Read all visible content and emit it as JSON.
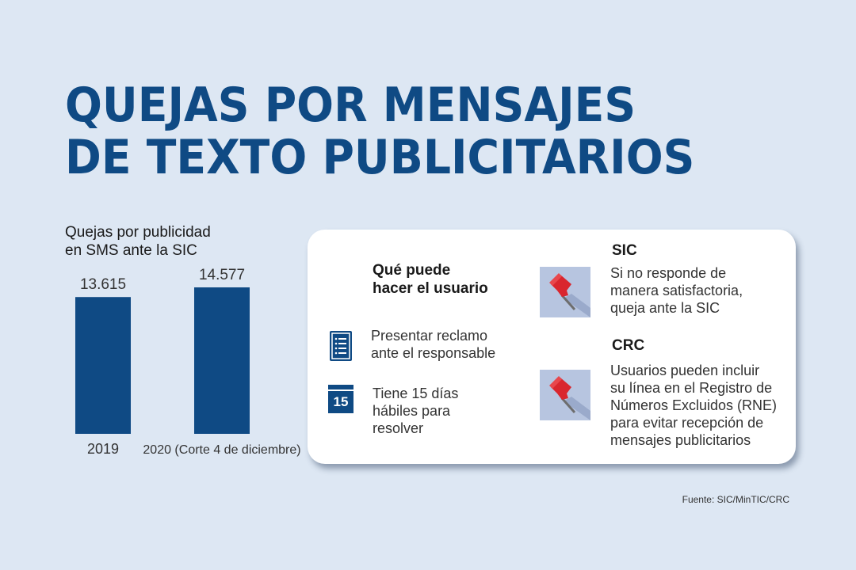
{
  "title": {
    "line1": "QUEJAS POR MENSAJES",
    "line2": "DE TEXTO PUBLICITARIOS"
  },
  "chart_data": {
    "type": "bar",
    "title_lines": [
      "Quejas por publicidad",
      "en SMS ante la SIC"
    ],
    "categories": [
      "2019",
      "2020 (Corte 4 de diciembre)"
    ],
    "values": [
      13615,
      14577
    ],
    "value_labels": [
      "13.615",
      "14.577"
    ],
    "xlabel": "",
    "ylabel": "",
    "ylim": [
      0,
      14577
    ],
    "grid": false,
    "bar_color": "#0f4a84"
  },
  "card": {
    "heading_lines": [
      "Qué puede",
      "hacer el usuario"
    ],
    "items": [
      {
        "icon": "document-icon",
        "lines": [
          "Presentar reclamo",
          "ante el responsable"
        ]
      },
      {
        "icon": "calendar-icon",
        "calendar_day": "15",
        "lines": [
          "Tiene 15 días",
          "hábiles para",
          "resolver"
        ]
      }
    ],
    "orgs": [
      {
        "name": "SIC",
        "icon": "pin-icon",
        "lines": [
          "Si no responde de",
          "manera satisfactoria,",
          "queja ante la SIC"
        ]
      },
      {
        "name": "CRC",
        "icon": "pin-icon",
        "lines": [
          "Usuarios pueden incluir",
          "su línea en el Registro de",
          "Números Excluidos (RNE)",
          "para evitar recepción de",
          "mensajes publicitarios"
        ]
      }
    ]
  },
  "source": "Fuente: SIC/MinTIC/CRC",
  "colors": {
    "background": "#dde7f3",
    "brand_blue": "#0f4a84",
    "pin_red": "#d9262e",
    "pin_tile": "#b7c5e0"
  }
}
